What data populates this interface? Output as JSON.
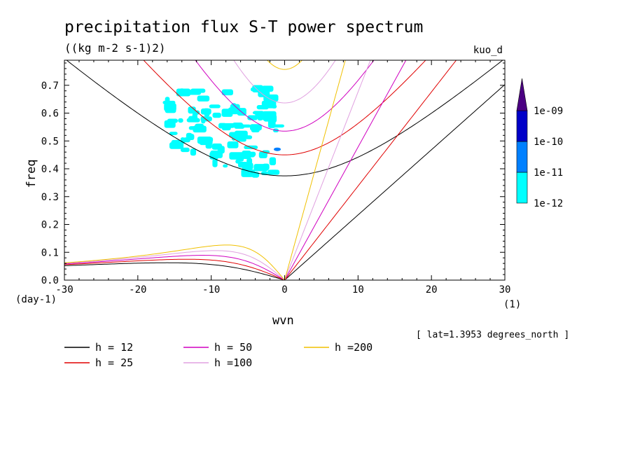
{
  "chart_data": {
    "type": "line",
    "title": "precipitation flux S-T power spectrum",
    "subtitle": "((kg m-2 s-1)2)",
    "dataset_label": "kuo_d",
    "xlabel": "wvn",
    "ylabel": "freq",
    "x_units": "(1)",
    "y_units": "(day-1)",
    "footnote": "[ lat=1.3953 degrees_north ]",
    "xlim": [
      -30,
      30
    ],
    "ylim": [
      0,
      0.79
    ],
    "x_ticks": [
      -30,
      -20,
      -10,
      0,
      10,
      20,
      30
    ],
    "x_tick_labels": [
      "-30",
      "-20",
      "-10",
      "0",
      "10",
      "20",
      "30"
    ],
    "y_ticks": [
      0.0,
      0.1,
      0.2,
      0.3,
      0.4,
      0.5,
      0.6,
      0.7
    ],
    "y_tick_labels": [
      "0.0",
      "0.1",
      "0.2",
      "0.3",
      "0.4",
      "0.5",
      "0.6",
      "0.7"
    ],
    "series": [
      {
        "name": "h = 12",
        "h": 12,
        "color": "#000000"
      },
      {
        "name": "h = 25",
        "h": 25,
        "color": "#e00000"
      },
      {
        "name": "h = 50",
        "h": 50,
        "color": "#d000c0"
      },
      {
        "name": "h =100",
        "h": 100,
        "color": "#e0a0e0"
      },
      {
        "name": "h =200",
        "h": 200,
        "color": "#f0c000"
      }
    ],
    "colorbar": {
      "levels": [
        "1e-12",
        "1e-11",
        "1e-10",
        "1e-09"
      ],
      "colors": [
        "#00ffff",
        "#0080ff",
        "#0000c8",
        "#4b0082"
      ]
    },
    "shading": {
      "color": "#00ffff",
      "level": "1e-12 to 1e-11",
      "region": {
        "wvn": [
          -16,
          0
        ],
        "freq": [
          0.37,
          0.7
        ]
      },
      "peak": {
        "wvn": -1,
        "freq": 0.47,
        "color": "#0080ff"
      }
    }
  }
}
